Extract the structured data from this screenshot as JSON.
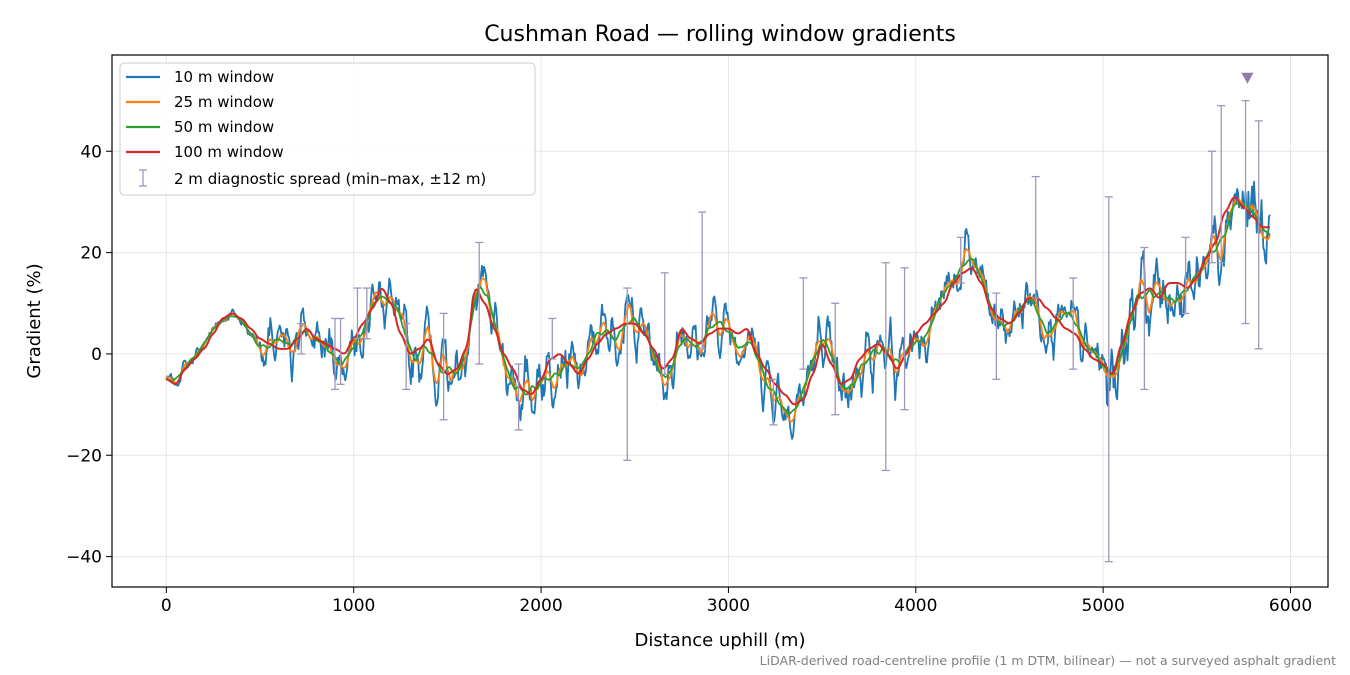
{
  "chart_data": {
    "type": "line",
    "title": "Cushman Road — rolling window gradients",
    "xlabel": "Distance uphill (m)",
    "ylabel": "Gradient (%)",
    "xlim": [
      -290,
      6200
    ],
    "ylim": [
      -46,
      59
    ],
    "xticks": [
      0,
      1000,
      2000,
      3000,
      4000,
      5000,
      6000
    ],
    "xtick_labels": [
      "0",
      "1000",
      "2000",
      "3000",
      "4000",
      "5000",
      "6000"
    ],
    "yticks": [
      -40,
      -20,
      0,
      20,
      40
    ],
    "ytick_labels": [
      "−40",
      "−20",
      "0",
      "20",
      "40"
    ],
    "grid": true,
    "legend_position": "top-left",
    "footnote": "LiDAR-derived road-centreline profile (1 m DTM, bilinear) — not a surveyed asphalt gradient",
    "series": [
      {
        "name": "10 m window",
        "color": "#1f77b4",
        "smooth_bins": 1,
        "amplitude": 1.0
      },
      {
        "name": "25 m window",
        "color": "#ff7f0e",
        "smooth_bins": 4,
        "amplitude": 0.9
      },
      {
        "name": "50 m window",
        "color": "#2ca02c",
        "smooth_bins": 9,
        "amplitude": 0.85
      },
      {
        "name": "100 m window",
        "color": "#d62728",
        "smooth_bins": 0,
        "amplitude": 1.0
      }
    ],
    "base_profile": {
      "x": [
        0,
        50,
        100,
        150,
        200,
        250,
        300,
        350,
        400,
        450,
        500,
        550,
        600,
        650,
        700,
        750,
        800,
        850,
        900,
        950,
        1000,
        1050,
        1100,
        1150,
        1200,
        1250,
        1300,
        1350,
        1400,
        1450,
        1500,
        1550,
        1600,
        1650,
        1700,
        1750,
        1800,
        1850,
        1900,
        1950,
        2000,
        2050,
        2100,
        2150,
        2200,
        2250,
        2300,
        2350,
        2400,
        2450,
        2500,
        2550,
        2600,
        2650,
        2700,
        2750,
        2800,
        2850,
        2900,
        2950,
        3000,
        3050,
        3100,
        3150,
        3200,
        3250,
        3300,
        3350,
        3400,
        3450,
        3500,
        3550,
        3600,
        3650,
        3700,
        3750,
        3800,
        3850,
        3900,
        3950,
        4000,
        4050,
        4100,
        4150,
        4200,
        4250,
        4300,
        4350,
        4400,
        4450,
        4500,
        4550,
        4600,
        4650,
        4700,
        4750,
        4800,
        4850,
        4900,
        4950,
        5000,
        5050,
        5100,
        5150,
        5200,
        5250,
        5300,
        5350,
        5400,
        5450,
        5500,
        5550,
        5600,
        5650,
        5700,
        5750,
        5800,
        5850
      ],
      "y": [
        -5,
        -6,
        -2,
        -1,
        2,
        5,
        7,
        8,
        7,
        4,
        2,
        1,
        0,
        1,
        4,
        5,
        2,
        1,
        0,
        -1,
        4,
        8,
        10,
        13,
        10,
        3,
        -1,
        1,
        4,
        -3,
        -5,
        -4,
        0,
        14,
        10,
        4,
        -2,
        -4,
        -8,
        -7,
        -4,
        -1,
        0,
        -3,
        -6,
        -1,
        3,
        5,
        6,
        6,
        7,
        4,
        0,
        -5,
        -2,
        7,
        3,
        1,
        5,
        6,
        5,
        4,
        6,
        -1,
        -4,
        -7,
        -9,
        -10,
        -8,
        -2,
        3,
        -3,
        -9,
        -6,
        -1,
        1,
        2,
        -1,
        -5,
        0,
        4,
        6,
        8,
        10,
        14,
        17,
        18,
        14,
        8,
        6,
        5,
        8,
        12,
        11,
        8,
        7,
        5,
        4,
        0,
        -1,
        -3,
        -4,
        3,
        9,
        13,
        12,
        10,
        15,
        14,
        12,
        16,
        20,
        23,
        30,
        32,
        28,
        25,
        24
      ],
      "red_y": [
        -5,
        -6,
        -3,
        -1,
        1,
        4,
        7,
        8,
        7,
        5,
        3,
        2,
        1,
        1,
        3,
        5,
        3,
        2,
        1,
        0,
        3,
        6,
        9,
        13,
        10,
        4,
        0,
        1,
        3,
        -2,
        -4,
        -3,
        1,
        13,
        10,
        5,
        0,
        -3,
        -7,
        -8,
        -5,
        -1,
        0,
        -2,
        -4,
        -1,
        2,
        4,
        5,
        6,
        6,
        4,
        1,
        -3,
        -1,
        5,
        3,
        2,
        4,
        5,
        5,
        4,
        5,
        0,
        -3,
        -6,
        -8,
        -10,
        -9,
        -4,
        2,
        -2,
        -6,
        -5,
        -1,
        1,
        2,
        0,
        -3,
        0,
        4,
        6,
        8,
        10,
        14,
        16,
        17,
        14,
        9,
        7,
        6,
        8,
        11,
        11,
        9,
        7,
        5,
        4,
        1,
        -1,
        -2,
        -4,
        2,
        8,
        12,
        13,
        11,
        14,
        14,
        13,
        15,
        19,
        22,
        28,
        31,
        29,
        27,
        25
      ]
    },
    "noise_seed": 7,
    "noise_amplitude": 5.5,
    "noise_amplitude_late": 9,
    "error_bars": {
      "name": "2 m diagnostic spread (min–max, ±12 m)",
      "color": "#a096b9",
      "points": [
        {
          "x": 720,
          "low": 0,
          "high": 6
        },
        {
          "x": 900,
          "low": -7,
          "high": 7
        },
        {
          "x": 930,
          "low": -6,
          "high": 7
        },
        {
          "x": 1020,
          "low": 3,
          "high": 13
        },
        {
          "x": 1070,
          "low": 3,
          "high": 13
        },
        {
          "x": 1280,
          "low": -7,
          "high": 6
        },
        {
          "x": 1480,
          "low": -13,
          "high": 8
        },
        {
          "x": 1670,
          "low": -2,
          "high": 22
        },
        {
          "x": 1880,
          "low": -15,
          "high": -2
        },
        {
          "x": 2060,
          "low": -1,
          "high": 7
        },
        {
          "x": 2460,
          "low": -21,
          "high": 13
        },
        {
          "x": 2660,
          "low": -4,
          "high": 16
        },
        {
          "x": 2860,
          "low": 1,
          "high": 28
        },
        {
          "x": 3240,
          "low": -14,
          "high": -5
        },
        {
          "x": 3400,
          "low": -3,
          "high": 15
        },
        {
          "x": 3570,
          "low": -12,
          "high": 10
        },
        {
          "x": 3840,
          "low": -23,
          "high": 18
        },
        {
          "x": 3940,
          "low": -11,
          "high": 17
        },
        {
          "x": 4240,
          "low": 14,
          "high": 23
        },
        {
          "x": 4430,
          "low": -5,
          "high": 12
        },
        {
          "x": 4640,
          "low": 11,
          "high": 35
        },
        {
          "x": 4840,
          "low": -3,
          "high": 15
        },
        {
          "x": 5030,
          "low": -41,
          "high": 31
        },
        {
          "x": 5220,
          "low": -7,
          "high": 21
        },
        {
          "x": 5440,
          "low": 8,
          "high": 23
        },
        {
          "x": 5580,
          "low": 18,
          "high": 40
        },
        {
          "x": 5630,
          "low": 18,
          "high": 49
        },
        {
          "x": 5760,
          "low": 6,
          "high": 50
        },
        {
          "x": 5830,
          "low": 1,
          "high": 46
        }
      ]
    },
    "marker": {
      "x": 5770,
      "y": 54.5,
      "color": "#8c7bab",
      "shape": "down-triangle"
    }
  }
}
